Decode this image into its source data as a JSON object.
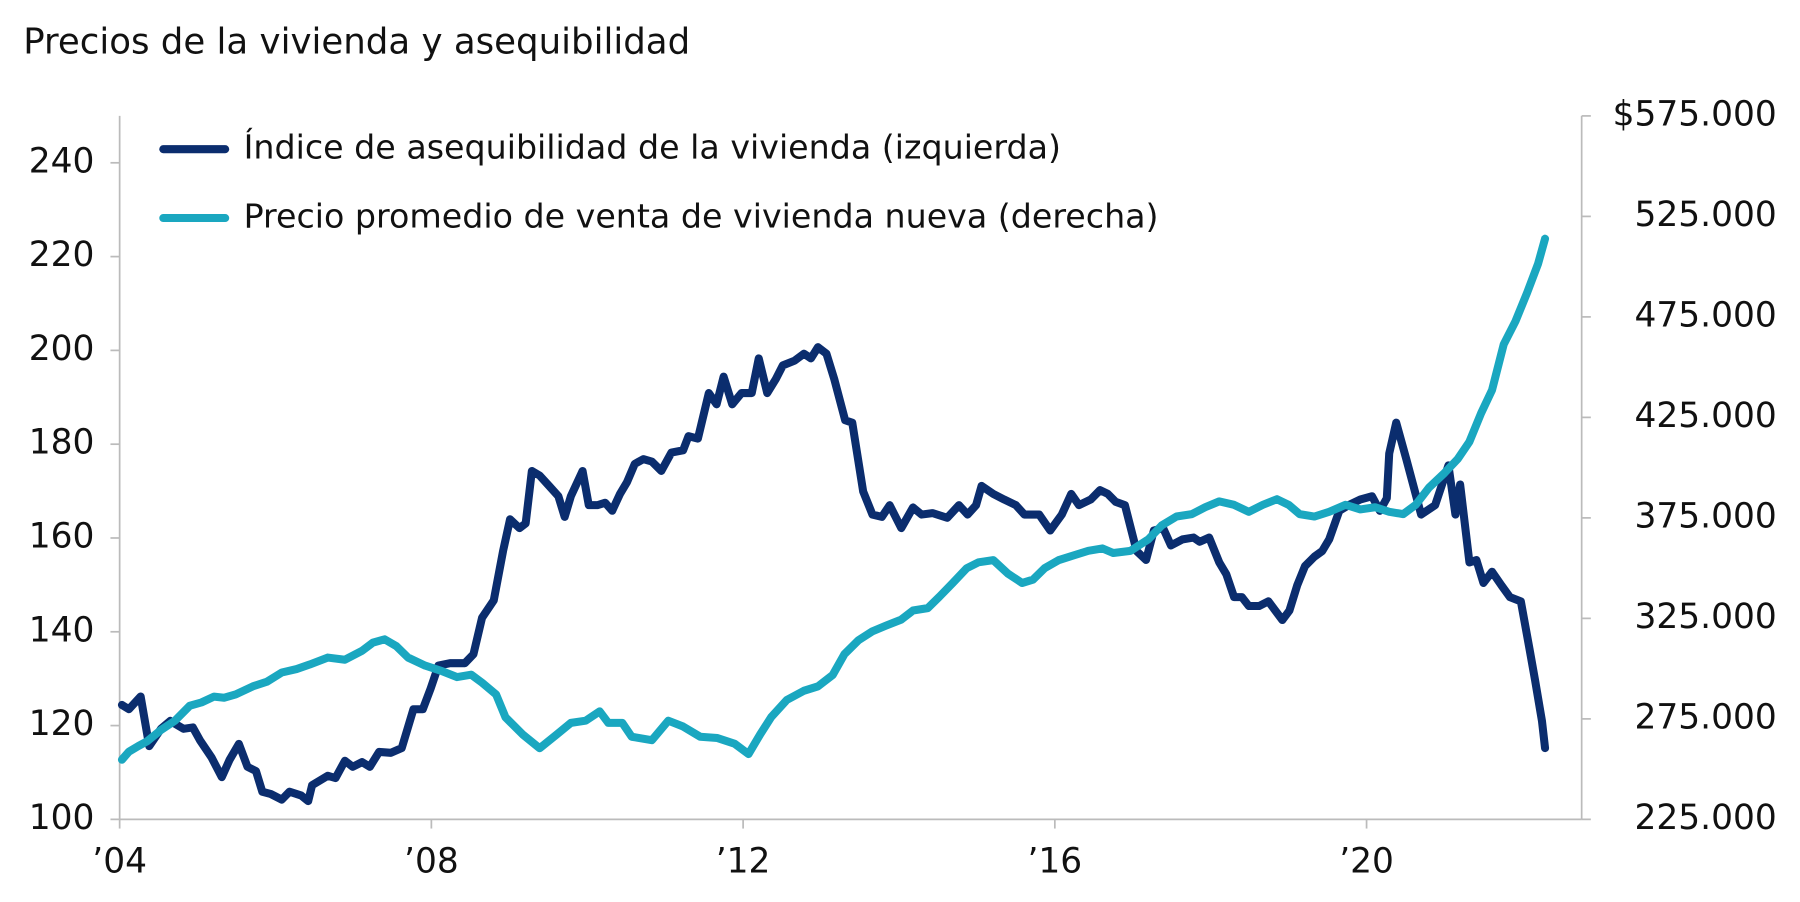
{
  "chart_data": {
    "type": "line",
    "title": "Precios de la vivienda y asequibilidad",
    "legend": "upper left",
    "xlim": [
      2004,
      2022.76
    ],
    "xticks": [
      {
        "value": 2004,
        "label": "’04"
      },
      {
        "value": 2008,
        "label": "’08"
      },
      {
        "value": 2012,
        "label": "’12"
      },
      {
        "value": 2016,
        "label": "’16"
      },
      {
        "value": 2020,
        "label": "’20"
      }
    ],
    "ylim": [
      100,
      250
    ],
    "yticks": [
      100,
      120,
      140,
      160,
      180,
      200,
      220,
      240
    ],
    "y2lim": [
      225000,
      575000
    ],
    "y2ticks": [
      {
        "value": 225000,
        "label": "225.000"
      },
      {
        "value": 275000,
        "label": "275.000"
      },
      {
        "value": 325000,
        "label": "325.000"
      },
      {
        "value": 375000,
        "label": "375.000"
      },
      {
        "value": 425000,
        "label": "425.000"
      },
      {
        "value": 475000,
        "label": "475.000"
      },
      {
        "value": 525000,
        "label": "525.000"
      },
      {
        "value": 575000,
        "label": "$575.000"
      }
    ],
    "series": [
      {
        "name": "Índice de asequibilidad de la vivienda (izquierda)",
        "color": "#0b2d6e",
        "x": [
          2004.03,
          2004.12,
          2004.27,
          2004.38,
          2004.53,
          2004.65,
          2004.82,
          2004.94,
          2005.03,
          2005.18,
          2005.31,
          2005.41,
          2005.53,
          2005.64,
          2005.75,
          2005.83,
          2005.94,
          2006.08,
          2006.18,
          2006.33,
          2006.42,
          2006.47,
          2006.67,
          2006.77,
          2006.89,
          2006.99,
          2007.11,
          2007.21,
          2007.33,
          2007.48,
          2007.62,
          2007.77,
          2007.89,
          2007.99,
          2008.09,
          2008.24,
          2008.43,
          2008.54,
          2008.65,
          2008.8,
          2008.92,
          2009.01,
          2009.13,
          2009.21,
          2009.29,
          2009.39,
          2009.51,
          2009.63,
          2009.71,
          2009.79,
          2009.94,
          2010.02,
          2010.13,
          2010.23,
          2010.32,
          2010.42,
          2010.51,
          2010.61,
          2010.72,
          2010.83,
          2010.95,
          2011.08,
          2011.23,
          2011.3,
          2011.42,
          2011.56,
          2011.66,
          2011.75,
          2011.86,
          2011.98,
          2012.11,
          2012.2,
          2012.31,
          2012.42,
          2012.51,
          2012.66,
          2012.78,
          2012.87,
          2012.96,
          2013.07,
          2013.17,
          2013.31,
          2013.4,
          2013.54,
          2013.66,
          2013.78,
          2013.88,
          2014.03,
          2014.18,
          2014.29,
          2014.43,
          2014.62,
          2014.77,
          2014.88,
          2014.99,
          2015.06,
          2015.21,
          2015.35,
          2015.5,
          2015.61,
          2015.8,
          2015.94,
          2016.09,
          2016.21,
          2016.31,
          2016.46,
          2016.58,
          2016.68,
          2016.78,
          2016.9,
          2017.05,
          2017.17,
          2017.27,
          2017.39,
          2017.49,
          2017.64,
          2017.78,
          2017.86,
          2017.98,
          2018.11,
          2018.2,
          2018.3,
          2018.4,
          2018.49,
          2018.62,
          2018.74,
          2018.92,
          2019.01,
          2019.11,
          2019.21,
          2019.33,
          2019.43,
          2019.52,
          2019.65,
          2019.77,
          2019.92,
          2020.07,
          2020.17,
          2020.26,
          2020.29,
          2020.38,
          2020.51,
          2020.7,
          2020.88,
          2021.05,
          2021.14,
          2021.2,
          2021.32,
          2021.41,
          2021.5,
          2021.61,
          2021.73,
          2021.84,
          2021.98,
          2022.09,
          2022.16,
          2022.25,
          2022.29
        ],
        "values": [
          124.4,
          123.5,
          126.2,
          115.6,
          119.3,
          121,
          119.3,
          119.6,
          116.9,
          113.2,
          109,
          112.7,
          116.1,
          111.2,
          110.3,
          105.9,
          105.4,
          104.2,
          105.9,
          105.1,
          103.9,
          107.3,
          109.3,
          108.8,
          112.5,
          111.2,
          112.2,
          111.2,
          114.4,
          114.2,
          115.2,
          123.5,
          123.5,
          127.9,
          132.8,
          133.3,
          133.3,
          135.2,
          143,
          146.7,
          157.2,
          164,
          162.1,
          163.1,
          174.3,
          173.3,
          171.1,
          168.9,
          164.5,
          168.9,
          174.3,
          167,
          167,
          167.5,
          165.8,
          169.4,
          171.9,
          175.8,
          176.8,
          176.3,
          174.3,
          178.2,
          178.7,
          181.7,
          181.2,
          190.9,
          188.5,
          194.4,
          188.5,
          190.9,
          190.9,
          198.3,
          190.9,
          193.9,
          196.8,
          197.8,
          199.3,
          198.3,
          200.7,
          199.3,
          193.9,
          185.1,
          184.6,
          169.9,
          165,
          164.5,
          167,
          162.1,
          166.5,
          165,
          165.3,
          164.3,
          167,
          165,
          167,
          171.1,
          169.4,
          168.2,
          167,
          165,
          165,
          161.6,
          165,
          169.4,
          167,
          168.2,
          170.2,
          169.4,
          167.7,
          167,
          157.2,
          155.3,
          161.6,
          162.1,
          158.4,
          159.7,
          160.1,
          159.2,
          160.1,
          154.8,
          152.3,
          147.4,
          147.4,
          145.5,
          145.5,
          146.5,
          142.5,
          144.5,
          149.9,
          154,
          156,
          157.2,
          159.7,
          165.8,
          167,
          168.2,
          168.9,
          165.8,
          168.5,
          178,
          184.6,
          176.8,
          165,
          167,
          175.5,
          165,
          171.4,
          154.8,
          155.3,
          150.4,
          152.8,
          149.9,
          147.4,
          146.5,
          136.4,
          129.8,
          121,
          115.2
        ]
      },
      {
        "name": "Precio promedio de venta de vivienda nueva (derecha)",
        "color": "#1aa7c0",
        "axis": "y2",
        "x": [
          2004.03,
          2004.12,
          2004.24,
          2004.35,
          2004.53,
          2004.71,
          2004.9,
          2005.05,
          2005.21,
          2005.34,
          2005.49,
          2005.71,
          2005.89,
          2006.08,
          2006.27,
          2006.44,
          2006.67,
          2006.89,
          2007.11,
          2007.25,
          2007.4,
          2007.55,
          2007.7,
          2007.92,
          2008.14,
          2008.33,
          2008.51,
          2008.65,
          2008.83,
          2008.95,
          2009.17,
          2009.39,
          2009.61,
          2009.79,
          2009.98,
          2010.16,
          2010.27,
          2010.45,
          2010.57,
          2010.83,
          2011.04,
          2011.23,
          2011.45,
          2011.67,
          2011.89,
          2012.07,
          2012.22,
          2012.36,
          2012.56,
          2012.78,
          2012.96,
          2013.15,
          2013.3,
          2013.48,
          2013.66,
          2013.84,
          2014.03,
          2014.18,
          2014.37,
          2014.52,
          2014.69,
          2014.87,
          2015.02,
          2015.21,
          2015.4,
          2015.58,
          2015.72,
          2015.87,
          2016.05,
          2016.24,
          2016.43,
          2016.61,
          2016.75,
          2016.97,
          2017.2,
          2017.37,
          2017.56,
          2017.76,
          2017.93,
          2018.11,
          2018.3,
          2018.49,
          2018.67,
          2018.85,
          2019,
          2019.14,
          2019.33,
          2019.52,
          2019.73,
          2019.92,
          2020.11,
          2020.29,
          2020.47,
          2020.63,
          2020.8,
          2021,
          2021.17,
          2021.32,
          2021.47,
          2021.61,
          2021.76,
          2021.91,
          2022.06,
          2022.2,
          2022.29
        ],
        "values": [
          254700,
          258700,
          261500,
          263800,
          269500,
          274100,
          281500,
          283200,
          286100,
          285500,
          287200,
          291200,
          293500,
          298100,
          299800,
          302100,
          305500,
          304400,
          308900,
          312900,
          314600,
          311200,
          305500,
          301500,
          298700,
          295800,
          297000,
          293000,
          287200,
          275800,
          267300,
          260400,
          267300,
          273000,
          274100,
          278700,
          273000,
          273000,
          266100,
          264400,
          274100,
          271200,
          266100,
          265500,
          262700,
          257500,
          267300,
          275800,
          284400,
          289000,
          291200,
          296900,
          307200,
          314100,
          318600,
          321500,
          324400,
          328900,
          330100,
          335800,
          342600,
          350000,
          352900,
          354000,
          347200,
          342600,
          344300,
          350000,
          354000,
          356300,
          358600,
          359800,
          357500,
          358600,
          364300,
          371200,
          375700,
          376900,
          380300,
          383200,
          381500,
          378000,
          381500,
          384300,
          381500,
          376900,
          375700,
          378000,
          381500,
          379200,
          380300,
          378000,
          376900,
          381500,
          390000,
          397400,
          404300,
          412900,
          427100,
          438600,
          461400,
          472800,
          487100,
          501400,
          513900
        ]
      }
    ]
  }
}
